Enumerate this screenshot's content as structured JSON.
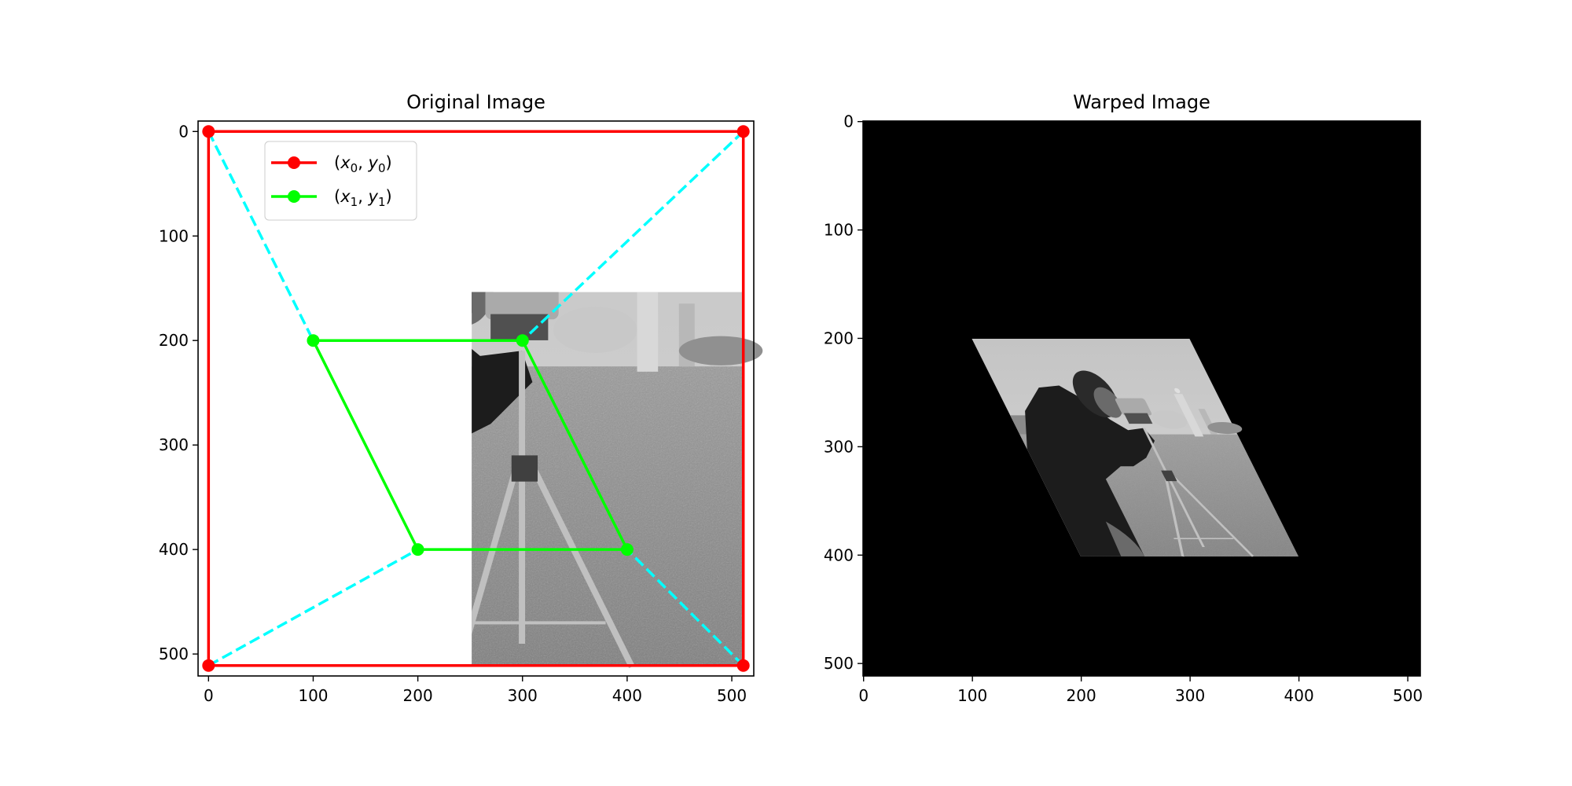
{
  "chart_data": [
    {
      "type": "image-with-overlay",
      "title": "Original Image",
      "xlim": [
        -10,
        521
      ],
      "ylim": [
        521,
        -10
      ],
      "xticks": [
        0,
        100,
        200,
        300,
        400,
        500
      ],
      "yticks": [
        0,
        100,
        200,
        300,
        400,
        500
      ],
      "image_extent": [
        -0.5,
        511.5,
        511.5,
        -0.5
      ],
      "series": [
        {
          "name": "(x0, y0)",
          "label_parts": [
            "(",
            "x",
            "0",
            ", ",
            "y",
            "0",
            ")"
          ],
          "color": "#ff0000",
          "style": "solid-marker",
          "closed": true,
          "points": [
            [
              0,
              0
            ],
            [
              511,
              0
            ],
            [
              511,
              511
            ],
            [
              0,
              511
            ]
          ]
        },
        {
          "name": "(x1, y1)",
          "label_parts": [
            "(",
            "x",
            "1",
            ", ",
            "y",
            "1",
            ")"
          ],
          "color": "#00ff00",
          "style": "solid-marker",
          "closed": true,
          "points": [
            [
              100,
              200
            ],
            [
              300,
              200
            ],
            [
              400,
              400
            ],
            [
              200,
              400
            ]
          ]
        }
      ],
      "correspondence_lines": {
        "color": "#00ffff",
        "style": "dashed",
        "pairs": [
          [
            [
              0,
              0
            ],
            [
              100,
              200
            ]
          ],
          [
            [
              511,
              0
            ],
            [
              300,
              200
            ]
          ],
          [
            [
              511,
              511
            ],
            [
              400,
              400
            ]
          ],
          [
            [
              0,
              511
            ],
            [
              200,
              400
            ]
          ]
        ]
      },
      "legend": {
        "placement": "upper-left"
      }
    },
    {
      "type": "image",
      "title": "Warped Image",
      "xlim": [
        -0.5,
        511.5
      ],
      "ylim": [
        511.5,
        -0.5
      ],
      "xticks": [
        0,
        100,
        200,
        300,
        400,
        500
      ],
      "yticks": [
        0,
        100,
        200,
        300,
        400,
        500
      ],
      "background": "#000000",
      "warped_region": [
        [
          100,
          200
        ],
        [
          300,
          200
        ],
        [
          400,
          400
        ],
        [
          200,
          400
        ]
      ]
    }
  ]
}
